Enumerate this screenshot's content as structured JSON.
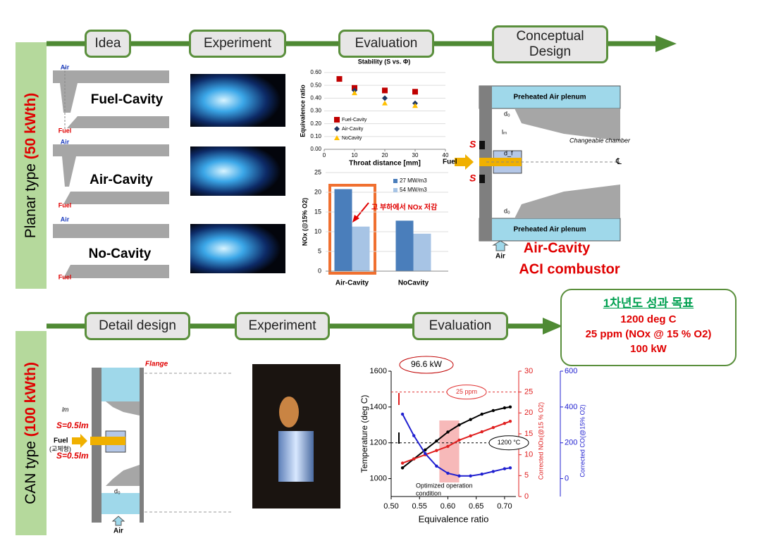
{
  "side_labels": [
    {
      "prefix": "Planar type ",
      "highlight": "(50 kWth)"
    },
    {
      "prefix": "CAN type ",
      "highlight": "(100 kWth)"
    }
  ],
  "top_stages": [
    "Idea",
    "Experiment",
    "Evaluation",
    "Conceptual Design"
  ],
  "bottom_stages": [
    "Detail design",
    "Experiment",
    "Evaluation"
  ],
  "idea": [
    {
      "label": "Fuel-Cavity",
      "air": "Air",
      "fuel": "Fuel"
    },
    {
      "label": "Air-Cavity",
      "air": "Air",
      "fuel": "Fuel"
    },
    {
      "label": "No-Cavity",
      "air": "Air",
      "fuel": "Fuel"
    }
  ],
  "stability_chart": {
    "type": "scatter",
    "title": "Stability (S vs. Φ)",
    "x_label": "Throat distance [mm]",
    "y_label": "Equivalence ratio",
    "xlim": [
      0,
      40
    ],
    "xticks": [
      0,
      10,
      20,
      30,
      40
    ],
    "ylim": [
      0,
      0.6
    ],
    "yticks": [
      {
        "value": 0,
        "label": "0.00"
      },
      {
        "value": 0.1,
        "label": "0.10"
      },
      {
        "value": 0.2,
        "label": "0.20"
      },
      {
        "value": 0.3,
        "label": "0.30"
      },
      {
        "value": 0.4,
        "label": "0.40"
      },
      {
        "value": 0.5,
        "label": "0.50"
      },
      {
        "value": 0.6,
        "label": "0.60"
      }
    ],
    "legend": "lower left",
    "series": [
      {
        "name": "Fuel-Cavity",
        "color": "#c00000",
        "marker": "square",
        "x": [
          5,
          10,
          20,
          30
        ],
        "values": [
          0.55,
          0.48,
          0.46,
          0.45
        ]
      },
      {
        "name": "Air-Cavity",
        "color": "#1f3864",
        "marker": "diamond",
        "x": [
          10,
          20,
          30
        ],
        "values": [
          0.46,
          0.4,
          0.36
        ]
      },
      {
        "name": "NoCavity",
        "color": "#ffc000",
        "marker": "triangle",
        "x": [
          10,
          20,
          30
        ],
        "values": [
          0.44,
          0.36,
          0.34
        ]
      }
    ]
  },
  "nox_chart": {
    "type": "bar",
    "y_label": "NOx (@15% O2)",
    "categories": [
      "Air-Cavity",
      "NoCavity"
    ],
    "ylim": [
      0,
      25
    ],
    "yticks": [
      0,
      5,
      10,
      15,
      20,
      25
    ],
    "grid": true,
    "legend": "upper right",
    "annotation": "고 부하에서 NOx 저감",
    "series": [
      {
        "name": "27 MW/m3",
        "color": "#4a7ebb",
        "values": [
          20.8,
          12.8
        ]
      },
      {
        "name": "54 MW/m3",
        "color": "#a7c4e5",
        "values": [
          11.3,
          9.5
        ]
      }
    ]
  },
  "concept": {
    "plenum_top": "Preheated Air plenum",
    "plenum_bottom": "Preheated Air plenum",
    "chamber": "Changeable chamber",
    "fuel": "Fuel",
    "air": "Air",
    "s_top": "S",
    "s_bottom": "S",
    "d0_top": "d₀",
    "d0_bottom": "d₀",
    "df": "d_f",
    "lm": "lₘ",
    "centerline": "℄",
    "caption": [
      "Air-Cavity",
      "ACI combustor"
    ]
  },
  "goals": {
    "title": "1차년도 성과 목표",
    "items": [
      "1200 deg C",
      "25 ppm (NOx @ 15 % O2)",
      "100 kW"
    ]
  },
  "detail": {
    "flange": "Flange",
    "s_top": "S=0.5lm",
    "s_bottom": "S=0.5lm",
    "fuel": "Fuel",
    "fuel_note": "(교체형)",
    "air": "Air",
    "lm": "lm",
    "d0": "d₀"
  },
  "evaluation_chart": {
    "type": "line",
    "x_label": "Equivalence ratio",
    "y_label": "Temperature (deg C)",
    "y2_label": "Corrected NOx(@15 % O2)",
    "y3_label": "Corrected CO(@15% O2)",
    "xlim": [
      0.5,
      0.72
    ],
    "xticks": [
      {
        "value": 0.5,
        "label": "0.50"
      },
      {
        "value": 0.55,
        "label": "0.55"
      },
      {
        "value": 0.6,
        "label": "0.60"
      },
      {
        "value": 0.65,
        "label": "0.65"
      },
      {
        "value": 0.7,
        "label": "0.70"
      }
    ],
    "ylim": [
      900,
      1600
    ],
    "yticks": [
      1000,
      1200,
      1400,
      1600
    ],
    "y2lim": [
      0,
      30
    ],
    "y2ticks": [
      0,
      5,
      10,
      15,
      20,
      25,
      30
    ],
    "y3lim": [
      -100,
      600
    ],
    "y3ticks": [
      0,
      200,
      400,
      600
    ],
    "highlight_x": [
      0.585,
      0.62
    ],
    "annotations": {
      "power": "96.6 kW",
      "region": [
        "Optimized operation",
        "condition"
      ]
    },
    "reference_lines": [
      {
        "axis": "y2",
        "value": 25,
        "label": "25 ppm",
        "color": "#e03030"
      },
      {
        "axis": "y",
        "value": 1200,
        "label": "1200 °C",
        "color": "#000000"
      }
    ],
    "x": [
      0.52,
      0.54,
      0.56,
      0.58,
      0.6,
      0.62,
      0.64,
      0.66,
      0.68,
      0.7,
      0.71
    ],
    "series": [
      {
        "name": "Temperature",
        "color": "#000000",
        "axis": "y",
        "values": [
          1060,
          1110,
          1160,
          1210,
          1260,
          1300,
          1330,
          1360,
          1380,
          1395,
          1400
        ]
      },
      {
        "name": "NOx",
        "color": "#e02020",
        "axis": "y2",
        "values": [
          8,
          9,
          10,
          11,
          12,
          13.5,
          14.5,
          15.5,
          16.5,
          17.5,
          18
        ]
      },
      {
        "name": "CO",
        "color": "#2020d0",
        "axis": "y3",
        "values": [
          360,
          240,
          140,
          70,
          30,
          15,
          15,
          25,
          40,
          55,
          60
        ]
      }
    ]
  }
}
